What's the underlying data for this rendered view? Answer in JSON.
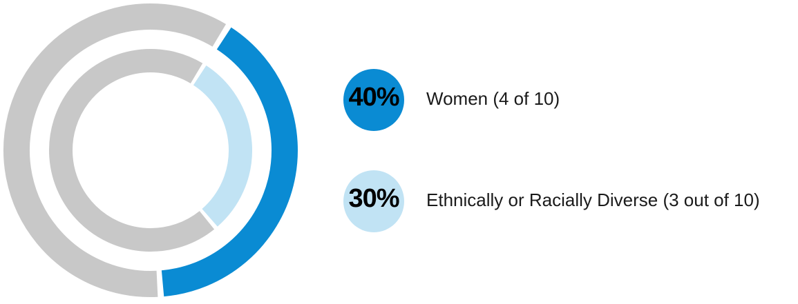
{
  "chart_data": {
    "type": "donut",
    "track_color": "#c8c8c8",
    "series": [
      {
        "name": "Women (4 of 10)",
        "color": "#0a8bd3",
        "values": [
          40
        ],
        "value_labels": [
          "40%"
        ]
      },
      {
        "name": "Ethnically or Racially Diverse (3 out of 10)",
        "color": "#c1e3f4",
        "values": [
          30
        ],
        "value_labels": [
          "30%"
        ]
      }
    ]
  }
}
